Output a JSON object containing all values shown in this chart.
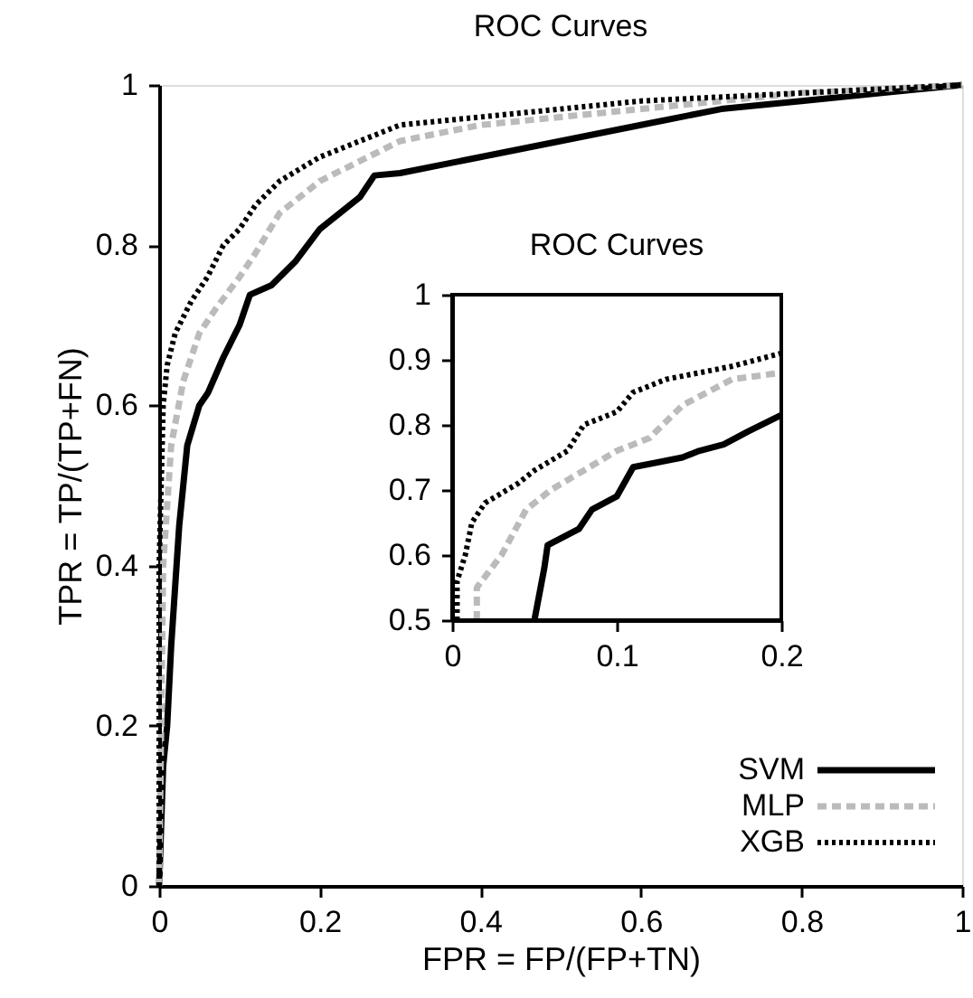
{
  "chart_data": [
    {
      "type": "line",
      "title": "ROC Curves",
      "xlabel": "FPR = FP/(FP+TN)",
      "ylabel": "TPR = TP/(TP+FN)",
      "xlim": [
        0,
        1
      ],
      "ylim": [
        0,
        1
      ],
      "xticks": [
        0,
        0.2,
        0.4,
        0.6,
        0.8,
        1
      ],
      "yticks": [
        0,
        0.2,
        0.4,
        0.6,
        0.8,
        1
      ],
      "grid": false,
      "legend": "bottom right",
      "marker": "none",
      "series": [
        {
          "name": "SVM",
          "color": "#000000",
          "line_style": "solid",
          "x": [
            0,
            0.005,
            0.01,
            0.015,
            0.025,
            0.035,
            0.05,
            0.061,
            0.08,
            0.1,
            0.113,
            0.14,
            0.17,
            0.2,
            0.25,
            0.268,
            0.3,
            0.4,
            0.5,
            0.6,
            0.7,
            0.8,
            0.9,
            1
          ],
          "values": [
            0,
            0.15,
            0.2,
            0.3,
            0.45,
            0.55,
            0.6,
            0.616,
            0.66,
            0.7,
            0.738,
            0.75,
            0.78,
            0.82,
            0.86,
            0.887,
            0.89,
            0.91,
            0.93,
            0.95,
            0.97,
            0.98,
            0.99,
            1
          ]
        },
        {
          "name": "MLP",
          "color": "#bbbbbb",
          "line_style": "dashed",
          "x": [
            0,
            0.005,
            0.015,
            0.03,
            0.05,
            0.07,
            0.1,
            0.12,
            0.15,
            0.2,
            0.3,
            0.4,
            0.6,
            0.8,
            1
          ],
          "values": [
            0,
            0.4,
            0.55,
            0.63,
            0.69,
            0.72,
            0.76,
            0.79,
            0.84,
            0.88,
            0.93,
            0.95,
            0.97,
            0.99,
            1
          ]
        },
        {
          "name": "XGB",
          "color": "#000000",
          "line_style": "dotted",
          "x": [
            0,
            0,
            0.005,
            0.01,
            0.02,
            0.04,
            0.06,
            0.08,
            0.1,
            0.12,
            0.15,
            0.2,
            0.3,
            0.4,
            0.6,
            0.8,
            1
          ],
          "values": [
            0,
            0.4,
            0.6,
            0.65,
            0.69,
            0.73,
            0.76,
            0.8,
            0.82,
            0.85,
            0.88,
            0.91,
            0.95,
            0.96,
            0.98,
            0.99,
            1
          ]
        }
      ]
    },
    {
      "type": "line",
      "title": "ROC Curves",
      "xlim": [
        0,
        0.2
      ],
      "ylim": [
        0.5,
        1
      ],
      "xticks": [
        0,
        0.1,
        0.2
      ],
      "yticks": [
        0.5,
        0.6,
        0.7,
        0.8,
        0.9,
        1
      ],
      "grid": false,
      "marker": "none",
      "series": [
        {
          "color": "#000000",
          "line_style": "solid",
          "x": [
            0.05,
            0.056,
            0.058,
            0.077,
            0.085,
            0.1,
            0.11,
            0.14,
            0.15,
            0.165,
            0.18,
            0.2
          ],
          "values": [
            0.5,
            0.58,
            0.615,
            0.64,
            0.67,
            0.69,
            0.735,
            0.75,
            0.76,
            0.77,
            0.79,
            0.815
          ]
        },
        {
          "color": "#bbbbbb",
          "line_style": "dashed",
          "x": [
            0.015,
            0.015,
            0.03,
            0.045,
            0.06,
            0.08,
            0.1,
            0.12,
            0.14,
            0.17,
            0.2
          ],
          "values": [
            0.5,
            0.55,
            0.6,
            0.67,
            0.7,
            0.73,
            0.76,
            0.78,
            0.83,
            0.87,
            0.88
          ]
        },
        {
          "color": "#000000",
          "line_style": "dotted",
          "x": [
            0.003,
            0.003,
            0.008,
            0.012,
            0.02,
            0.04,
            0.05,
            0.07,
            0.08,
            0.1,
            0.11,
            0.13,
            0.15,
            0.17,
            0.2
          ],
          "values": [
            0.5,
            0.56,
            0.6,
            0.65,
            0.68,
            0.71,
            0.73,
            0.76,
            0.8,
            0.82,
            0.85,
            0.87,
            0.88,
            0.89,
            0.91
          ]
        }
      ]
    }
  ]
}
